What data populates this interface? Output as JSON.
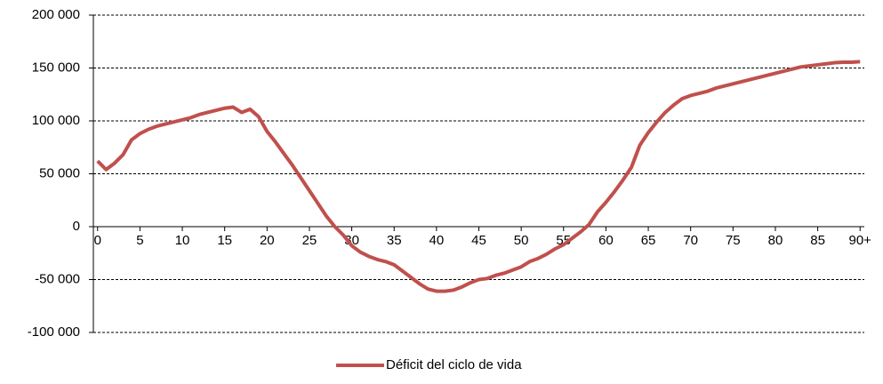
{
  "chart_data": {
    "type": "line",
    "x": [
      0,
      1,
      2,
      3,
      4,
      5,
      6,
      7,
      8,
      9,
      10,
      11,
      12,
      13,
      14,
      15,
      16,
      17,
      18,
      19,
      20,
      21,
      22,
      23,
      24,
      25,
      26,
      27,
      28,
      29,
      30,
      31,
      32,
      33,
      34,
      35,
      36,
      37,
      38,
      39,
      40,
      41,
      42,
      43,
      44,
      45,
      46,
      47,
      48,
      49,
      50,
      51,
      52,
      53,
      54,
      55,
      56,
      57,
      58,
      59,
      60,
      61,
      62,
      63,
      64,
      65,
      66,
      67,
      68,
      69,
      70,
      71,
      72,
      73,
      74,
      75,
      76,
      77,
      78,
      79,
      80,
      81,
      82,
      83,
      84,
      85,
      86,
      87,
      88,
      89,
      90
    ],
    "series": [
      {
        "name": "Déficit del ciclo de vida",
        "color": "#c0504d",
        "values": [
          62000,
          54000,
          60000,
          68000,
          82000,
          88000,
          92000,
          95000,
          97000,
          99000,
          101000,
          103000,
          106000,
          108000,
          110000,
          112000,
          113000,
          108000,
          111000,
          104000,
          90000,
          80000,
          69000,
          58000,
          46000,
          34000,
          22000,
          10000,
          0,
          -8000,
          -18000,
          -24000,
          -28000,
          -31000,
          -33000,
          -36000,
          -42000,
          -48000,
          -54000,
          -59000,
          -61000,
          -61000,
          -60000,
          -57000,
          -53000,
          -50000,
          -49000,
          -46000,
          -44000,
          -41000,
          -38000,
          -33000,
          -30000,
          -26000,
          -21000,
          -17000,
          -11000,
          -5000,
          2000,
          14000,
          23000,
          33000,
          44000,
          56000,
          77000,
          89000,
          99000,
          108000,
          115000,
          121000,
          124000,
          126000,
          128000,
          131000,
          133000,
          135000,
          137000,
          139000,
          141000,
          143000,
          145000,
          147000,
          149000,
          151000,
          152000,
          153000,
          154000,
          155000,
          155500,
          155500,
          156000
        ]
      }
    ],
    "xlim": [
      -0.5,
      90.5
    ],
    "xticks": [
      0,
      5,
      10,
      15,
      20,
      25,
      30,
      35,
      40,
      45,
      50,
      55,
      60,
      65,
      70,
      75,
      80,
      85,
      {
        "value": 90,
        "label": "90+"
      }
    ],
    "ylim": [
      -100000,
      200000
    ],
    "yticks": [
      {
        "value": -100000,
        "label": "-100 000"
      },
      {
        "value": -50000,
        "label": "-50 000"
      },
      {
        "value": 0,
        "label": "0"
      },
      {
        "value": 50000,
        "label": "50 000"
      },
      {
        "value": 100000,
        "label": "100 000"
      },
      {
        "value": 150000,
        "label": "150 000"
      },
      {
        "value": 200000,
        "label": "200 000"
      }
    ],
    "grid": true,
    "legend": "bottom"
  }
}
